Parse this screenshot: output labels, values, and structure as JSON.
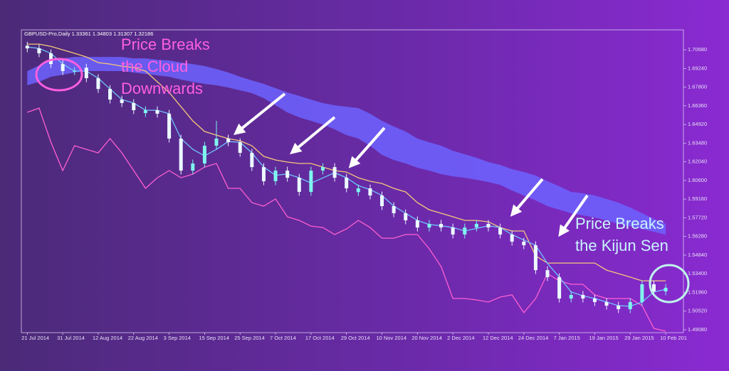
{
  "chart_data": {
    "type": "candlestick",
    "header": "GBPUSD-Pro,Daily  1.33361 1.34803 1.31307 1.32186",
    "categories": [
      "21 Jul 2014",
      null,
      null,
      "31 Jul 2014",
      null,
      null,
      "12 Aug 2014",
      null,
      null,
      "22 Aug 2014",
      null,
      null,
      "3 Sep 2014",
      null,
      null,
      "15 Sep 2014",
      null,
      null,
      "25 Sep 2014",
      null,
      null,
      "7 Oct 2014",
      null,
      null,
      "17 Oct 2014",
      null,
      null,
      "29 Oct 2014",
      null,
      null,
      "10 Nov 2014",
      null,
      null,
      "20 Nov 2014",
      null,
      null,
      "2 Dec 2014",
      null,
      null,
      "12 Dec 2014",
      null,
      null,
      "24 Dec 2014",
      null,
      null,
      "7 Jan 2015",
      null,
      null,
      "19 Jan 2015",
      null,
      null,
      "29 Jan 2015",
      null,
      null,
      "10 Feb 201"
    ],
    "open": [
      1.71,
      1.7079,
      1.7041,
      1.6958,
      1.6904,
      1.693,
      1.6849,
      1.6766,
      1.6684,
      1.6657,
      1.658,
      1.6602,
      1.6575,
      1.6383,
      1.6136,
      1.6191,
      1.6328,
      1.6383,
      1.6355,
      1.6273,
      1.6163,
      1.6054,
      1.6136,
      1.6081,
      1.5972,
      1.6136,
      1.6163,
      1.6081,
      1.597,
      1.5999,
      1.5944,
      1.5862,
      1.5807,
      1.5752,
      1.5697,
      1.5725,
      1.5697,
      1.5643,
      1.5697,
      1.5725,
      1.5697,
      1.5643,
      1.5588,
      1.556,
      1.5368,
      1.5314,
      1.5149,
      1.5177,
      1.5149,
      1.5122,
      1.5094,
      1.5067,
      1.5122,
      1.5259,
      1.5204
    ],
    "high": [
      1.713,
      1.7109,
      1.7071,
      1.6988,
      1.6934,
      1.696,
      1.6879,
      1.6796,
      1.6714,
      1.6687,
      1.6632,
      1.6632,
      1.6605,
      1.6413,
      1.6221,
      1.6358,
      1.652,
      1.6413,
      1.6385,
      1.6303,
      1.6193,
      1.6166,
      1.6166,
      1.6111,
      1.6166,
      1.6193,
      1.6193,
      1.6111,
      1.6029,
      1.6029,
      1.5974,
      1.5892,
      1.5837,
      1.5782,
      1.5755,
      1.5755,
      1.5727,
      1.5727,
      1.5755,
      1.5755,
      1.5727,
      1.5673,
      1.5618,
      1.559,
      1.5398,
      1.5344,
      1.5207,
      1.5207,
      1.5179,
      1.5152,
      1.5124,
      1.5152,
      1.5289,
      1.5289,
      1.5262
    ],
    "low": [
      1.7049,
      1.7011,
      1.6928,
      1.6874,
      1.6874,
      1.6819,
      1.6736,
      1.6654,
      1.6627,
      1.6572,
      1.655,
      1.6545,
      1.6353,
      1.6106,
      1.6106,
      1.6161,
      1.6298,
      1.6325,
      1.6243,
      1.6133,
      1.6024,
      1.6024,
      1.6051,
      1.5942,
      1.5942,
      1.6106,
      1.6051,
      1.5969,
      1.594,
      1.5914,
      1.5832,
      1.5777,
      1.5722,
      1.5667,
      1.5667,
      1.5667,
      1.5613,
      1.5613,
      1.5667,
      1.5667,
      1.5613,
      1.5558,
      1.553,
      1.5338,
      1.5284,
      1.5119,
      1.5119,
      1.5119,
      1.5092,
      1.5064,
      1.5037,
      1.5037,
      1.5092,
      1.5174,
      1.5174
    ],
    "close": [
      1.7079,
      1.7041,
      1.6958,
      1.6904,
      1.6904,
      1.6849,
      1.6766,
      1.6684,
      1.6657,
      1.6602,
      1.6602,
      1.6575,
      1.6383,
      1.6136,
      1.6191,
      1.6328,
      1.6383,
      1.6355,
      1.6273,
      1.6163,
      1.6054,
      1.6136,
      1.6081,
      1.5972,
      1.6136,
      1.6163,
      1.6081,
      1.5999,
      1.5999,
      1.5944,
      1.5862,
      1.5807,
      1.5752,
      1.5697,
      1.5725,
      1.5697,
      1.5643,
      1.5697,
      1.5725,
      1.5697,
      1.5643,
      1.5588,
      1.556,
      1.5368,
      1.5314,
      1.5149,
      1.5177,
      1.5149,
      1.5122,
      1.5094,
      1.5067,
      1.5122,
      1.5259,
      1.5204,
      1.5232
    ],
    "up_color": "#7ff5ee",
    "down_color": "#ecfbff",
    "cloud": {
      "color": "#6d63ff",
      "upper": [
        1.6904,
        1.6947,
        1.6986,
        1.7002,
        1.7013,
        1.7013,
        1.7013,
        1.7013,
        1.7013,
        1.7002,
        1.7002,
        1.6991,
        1.6986,
        1.6969,
        1.6958,
        1.6942,
        1.692,
        1.6893,
        1.686,
        1.6832,
        1.6805,
        1.6772,
        1.6739,
        1.6712,
        1.6684,
        1.6657,
        1.664,
        1.6629,
        1.6618,
        1.6575,
        1.652,
        1.6476,
        1.6438,
        1.6383,
        1.6355,
        1.6328,
        1.6289,
        1.6262,
        1.6235,
        1.6202,
        1.618,
        1.6147,
        1.6125,
        1.6098,
        1.6054,
        1.6015,
        1.5972,
        1.5961,
        1.5944,
        1.5917,
        1.5889,
        1.5851,
        1.5807,
        1.5763,
        1.5725
      ],
      "lower": [
        1.6794,
        1.6821,
        1.686,
        1.6876,
        1.6893,
        1.6904,
        1.6904,
        1.6904,
        1.6904,
        1.6893,
        1.6882,
        1.6871,
        1.686,
        1.6838,
        1.6821,
        1.6805,
        1.6794,
        1.6777,
        1.6755,
        1.6734,
        1.6695,
        1.664,
        1.6585,
        1.6547,
        1.652,
        1.6492,
        1.6454,
        1.641,
        1.6383,
        1.6328,
        1.6257,
        1.6218,
        1.6191,
        1.6158,
        1.6136,
        1.6109,
        1.6092,
        1.6081,
        1.6065,
        1.6048,
        1.6026,
        1.5982,
        1.5944,
        1.5906,
        1.5862,
        1.5834,
        1.5807,
        1.5791,
        1.5774,
        1.5752,
        1.5725,
        1.5708,
        1.5686,
        1.5664,
        1.5643
      ]
    },
    "series": [
      {
        "color": "#ff5fd0",
        "values": [
          1.6586,
          1.6618,
          1.6355,
          1.6136,
          1.6328,
          1.63,
          1.6273,
          1.6383,
          1.6273,
          1.6136,
          1.5999,
          1.6081,
          1.6136,
          1.6081,
          1.6109,
          1.6163,
          1.6191,
          1.5999,
          1.5999,
          1.5889,
          1.5862,
          1.5917,
          1.578,
          1.5752,
          1.5708,
          1.5697,
          1.5643,
          1.5686,
          1.5752,
          1.5697,
          1.5615,
          1.5615,
          1.5643,
          1.5643,
          1.5533,
          1.5396,
          1.5149,
          1.5149,
          1.5138,
          1.5122,
          1.516,
          1.5177,
          1.504,
          1.5149,
          1.5341,
          1.5286,
          1.5259,
          1.5259,
          1.5177,
          1.5149,
          1.5149,
          1.5149,
          1.5094,
          1.4919,
          1.4897
        ]
      },
      {
        "color": "#f6c77a",
        "values": [
          1.7112,
          1.7112,
          1.7095,
          1.7068,
          1.7041,
          1.7013,
          1.6969,
          1.6958,
          1.6942,
          1.6931,
          1.6904,
          1.6821,
          1.6739,
          1.6629,
          1.652,
          1.6438,
          1.641,
          1.6383,
          1.6366,
          1.6328,
          1.6246,
          1.6218,
          1.6202,
          1.6191,
          1.6191,
          1.6163,
          1.6136,
          1.6125,
          1.6081,
          1.6054,
          1.6037,
          1.5999,
          1.5972,
          1.5889,
          1.5834,
          1.5807,
          1.578,
          1.5752,
          1.5752,
          1.5741,
          1.5697,
          1.567,
          1.567,
          1.5478,
          1.5423,
          1.5423,
          1.5423,
          1.5423,
          1.5423,
          1.5368,
          1.5341,
          1.5314,
          1.5286,
          1.5286,
          1.5286
        ]
      },
      {
        "color": "#6fc4ff",
        "values": [
          1.709,
          1.7079,
          1.7041,
          1.6958,
          1.6904,
          1.6904,
          1.6849,
          1.6766,
          1.6684,
          1.6657,
          1.6602,
          1.6602,
          1.6575,
          1.6383,
          1.63,
          1.625,
          1.63,
          1.636,
          1.6355,
          1.6273,
          1.6163,
          1.61,
          1.611,
          1.6081,
          1.604,
          1.608,
          1.612,
          1.6081,
          1.602,
          1.599,
          1.5944,
          1.5862,
          1.5807,
          1.5752,
          1.572,
          1.571,
          1.5697,
          1.567,
          1.569,
          1.571,
          1.5697,
          1.5643,
          1.56,
          1.556,
          1.542,
          1.5314,
          1.52,
          1.517,
          1.5149,
          1.5122,
          1.5094,
          1.509,
          1.5122,
          1.52,
          1.522
        ]
      }
    ],
    "ylim": [
      1.4886,
      1.7222
    ],
    "yticks": [
      {
        "value": 1.7068,
        "label": "1.70680"
      },
      {
        "value": 1.6924,
        "label": "1.69240"
      },
      {
        "value": 1.678,
        "label": "1.67800"
      },
      {
        "value": 1.6636,
        "label": "1.66360"
      },
      {
        "value": 1.6492,
        "label": "1.64920"
      },
      {
        "value": 1.6348,
        "label": "1.63480"
      },
      {
        "value": 1.6204,
        "label": "1.62040"
      },
      {
        "value": 1.606,
        "label": "1.60600"
      },
      {
        "value": 1.5916,
        "label": "1.59160"
      },
      {
        "value": 1.5772,
        "label": "1.57720"
      },
      {
        "value": 1.5628,
        "label": "1.56280"
      },
      {
        "value": 1.5484,
        "label": "1.54840"
      },
      {
        "value": 1.534,
        "label": "1.53400"
      },
      {
        "value": 1.5196,
        "label": "1.51960"
      },
      {
        "value": 1.5052,
        "label": "1.50520"
      },
      {
        "value": 1.4908,
        "label": "1.49080"
      }
    ],
    "annotations": [
      {
        "lines": [
          "Price Breaks",
          "the Cloud",
          "Downwards"
        ],
        "color": "#ff5fe0"
      },
      {
        "lines": [
          "Price Breaks",
          "the Kijun Sen"
        ],
        "color": "#c9f4ff"
      }
    ]
  }
}
